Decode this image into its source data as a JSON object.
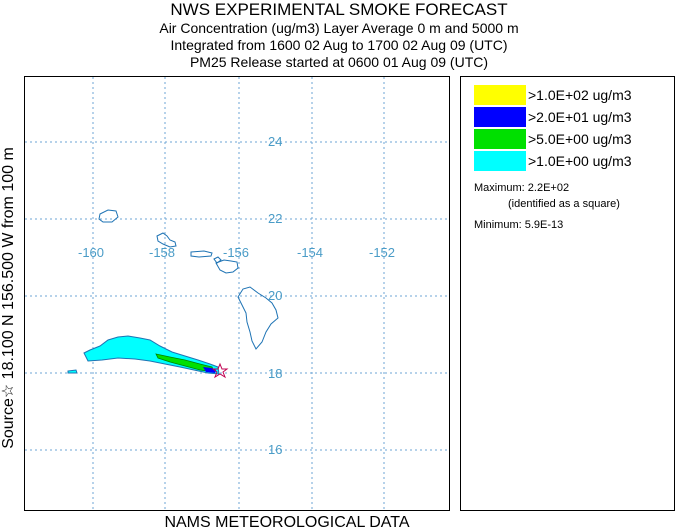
{
  "header": {
    "title": "NWS EXPERIMENTAL SMOKE FORECAST",
    "line1": "Air Concentration (ug/m3) Layer Average    0 m and  5000 m",
    "line2": "Integrated from 1600 02 Aug to 1700 02 Aug 09 (UTC)",
    "line3": "PM25 Release started at 0600 01 Aug 09 (UTC)"
  },
  "side_label": "Source☆ 18.100 N 156.500 W    from  100 m",
  "footer": "NAMS METEOROLOGICAL DATA",
  "map": {
    "lat_labels": [
      "24",
      "22",
      "20",
      "18",
      "16"
    ],
    "lon_labels": [
      "-160",
      "-158",
      "-156",
      "-154",
      "-152"
    ],
    "grid_color": "#6ea6d6",
    "label_color": "#4a9cc7",
    "coast_color": "#1e73b4",
    "source_marker": "star"
  },
  "legend": {
    "entries": [
      {
        "label": ">1.0E+02 ug/m3",
        "color": "#ffff00"
      },
      {
        "label": ">2.0E+01 ug/m3",
        "color": "#0000ff"
      },
      {
        "label": ">5.0E+00 ug/m3",
        "color": "#00e000"
      },
      {
        "label": ">1.0E+00 ug/m3",
        "color": "#00ffff"
      }
    ],
    "maximum": "Maximum: 2.2E+02",
    "max_note": "(identified as a square)",
    "minimum": "Minimum: 5.9E-13"
  }
}
